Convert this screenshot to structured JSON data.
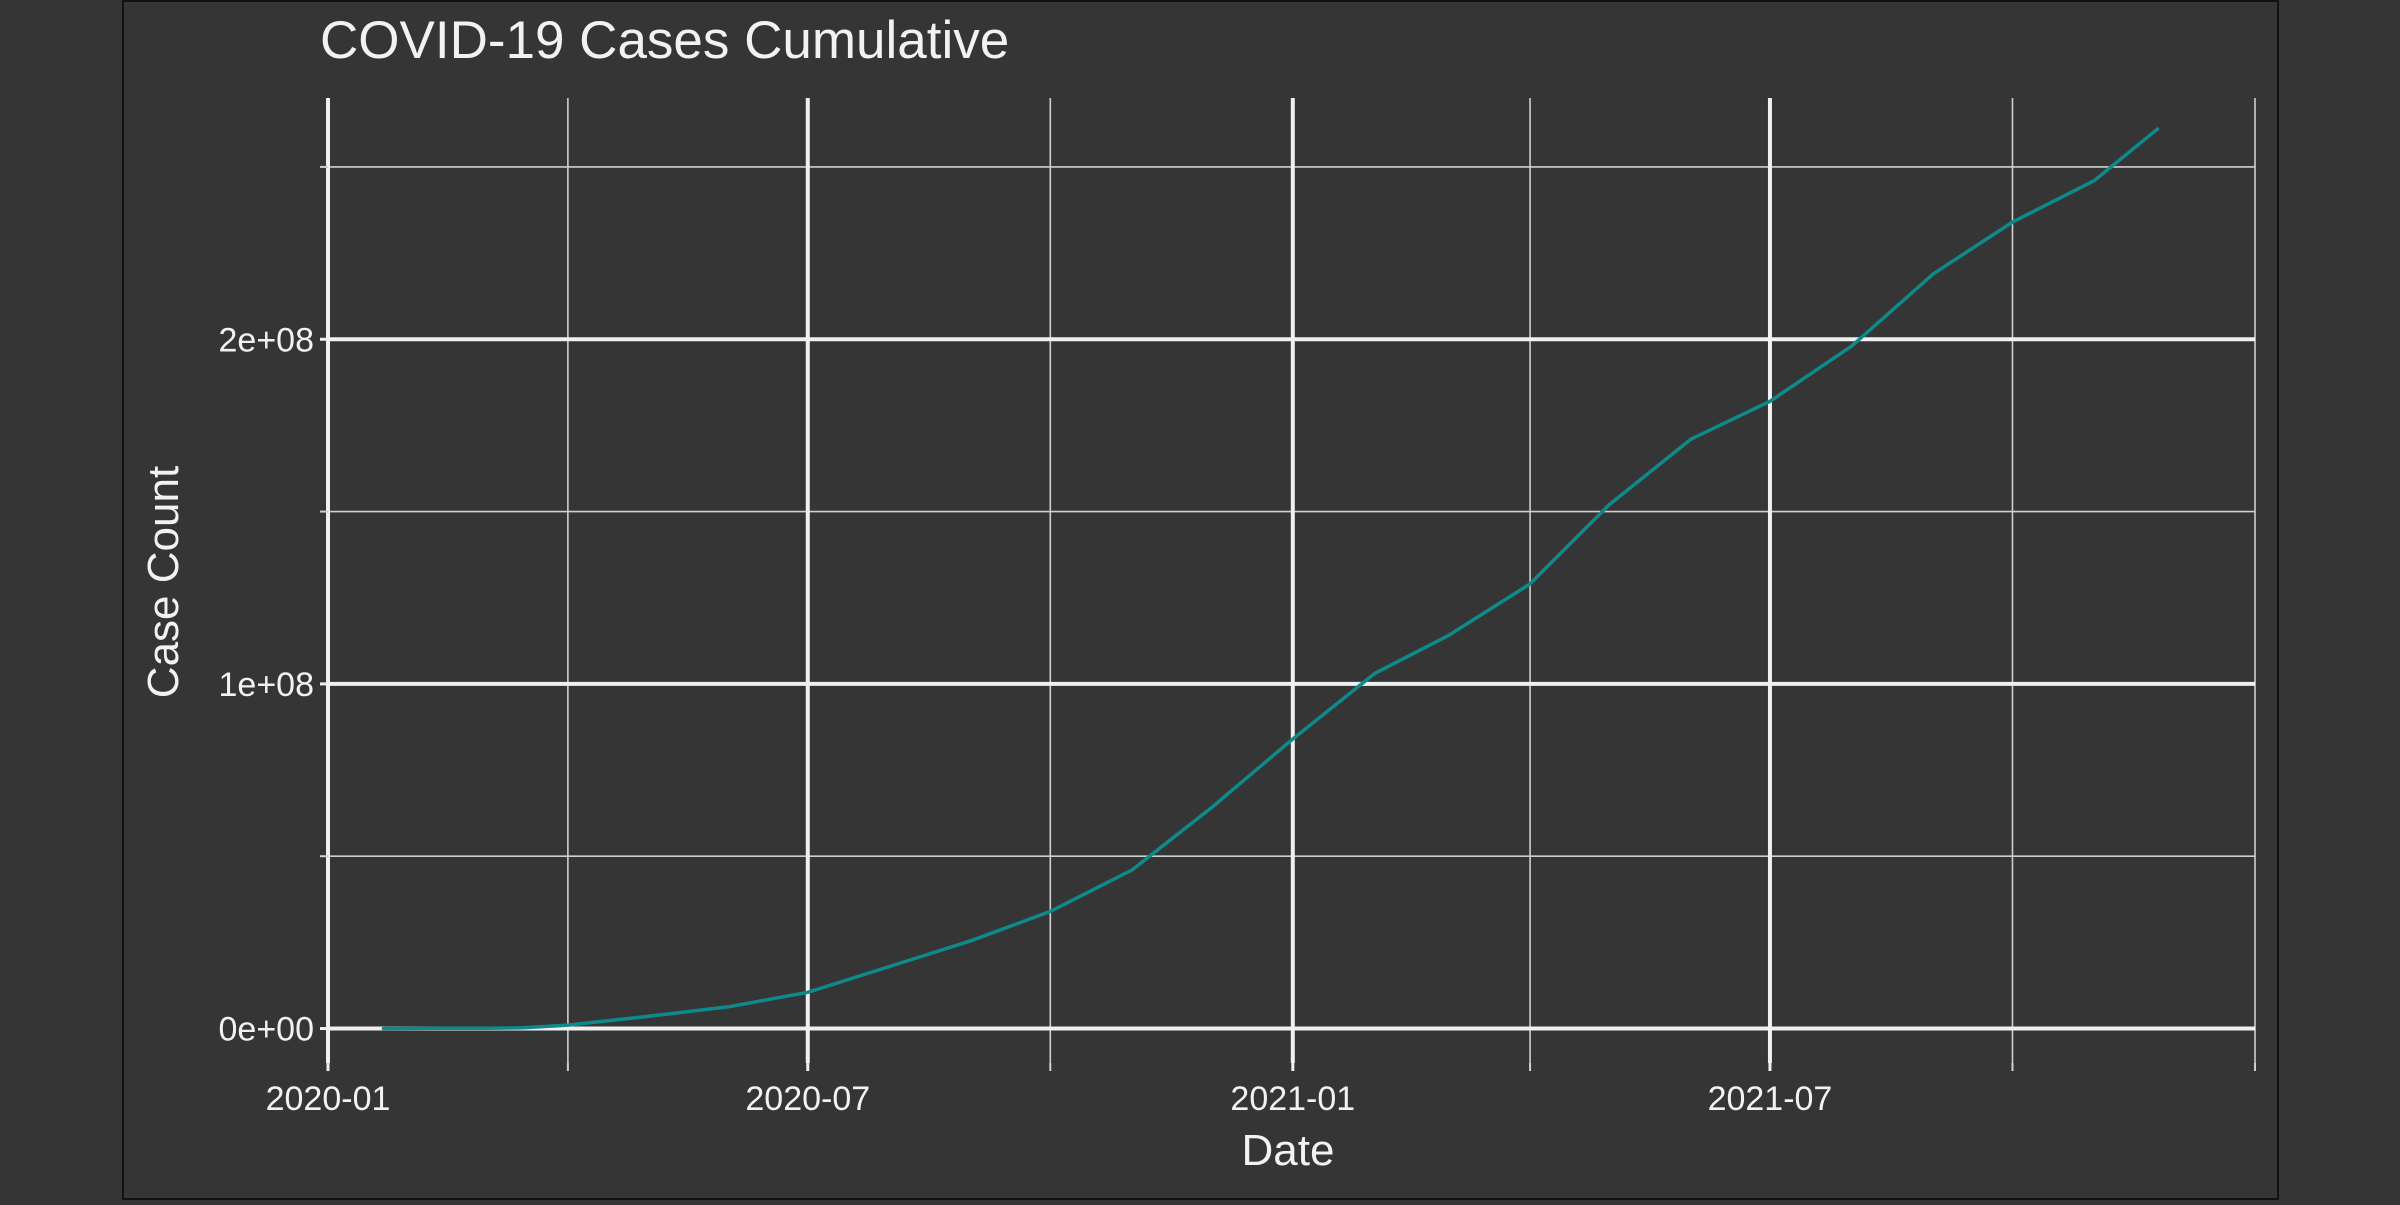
{
  "chart_data": {
    "type": "line",
    "title": "COVID-19 Cases Cumulative",
    "xlabel": "Date",
    "ylabel": "Case Count",
    "x_ticks": [
      "2020-01",
      "2020-07",
      "2021-01",
      "2021-07"
    ],
    "y_ticks": [
      "0e+00",
      "1e+08",
      "2e+08"
    ],
    "xlim": [
      "2020-01-01",
      "2022-01-01"
    ],
    "ylim": [
      -10000000,
      270000000
    ],
    "grid": true,
    "line_color": "#0e8a8a",
    "series": [
      {
        "x": [
          "2020-01-22",
          "2020-02-15",
          "2020-03-01",
          "2020-03-15",
          "2020-04-01",
          "2020-05-01",
          "2020-06-01",
          "2020-07-01",
          "2020-08-01",
          "2020-09-01",
          "2020-10-01",
          "2020-11-01",
          "2020-12-01",
          "2021-01-01",
          "2021-02-01",
          "2021-03-01",
          "2021-04-01",
          "2021-05-01",
          "2021-06-01",
          "2021-07-01",
          "2021-08-01",
          "2021-09-01",
          "2021-10-01",
          "2021-11-01",
          "2021-11-25"
        ],
        "values": [
          0,
          100000,
          100000,
          200000,
          1000000,
          3500000,
          6300000,
          10500000,
          18000000,
          25500000,
          34000000,
          46000000,
          64000000,
          84000000,
          103000000,
          114000000,
          129000000,
          152000000,
          171000000,
          182000000,
          198000000,
          219000000,
          234000000,
          246000000,
          261000000
        ]
      }
    ]
  }
}
